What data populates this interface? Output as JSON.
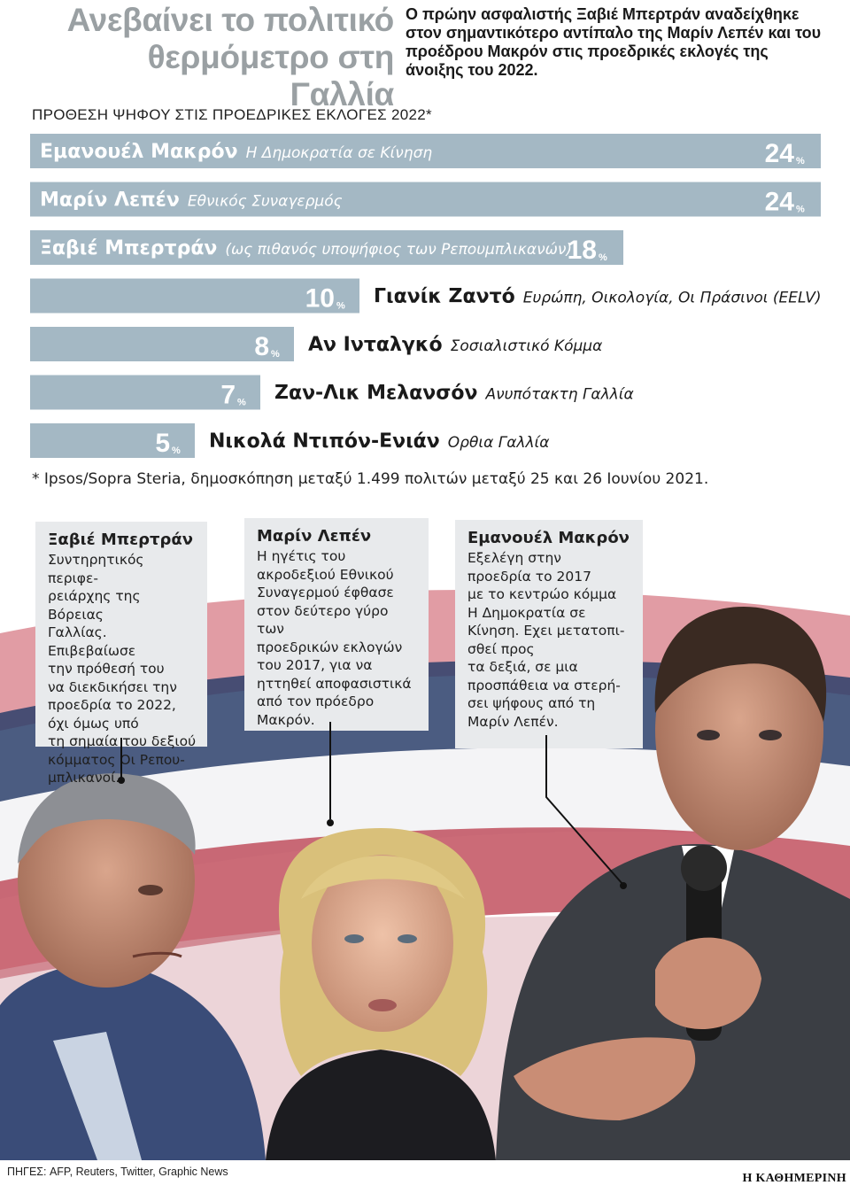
{
  "header": {
    "headline": "Ανεβαίνει το πολιτικό θερμόμετρο στη Γαλλία",
    "intro": "Ο πρώην ασφαλιστής Ξαβιέ Μπερτράν αναδείχθηκε στον σημαντικότερο αντίπαλο της Μαρίν Λεπέν και του προέδρου Μακρόν στις προεδρικές εκλογές της άνοιξης του 2022."
  },
  "chart_data": {
    "type": "bar",
    "orientation": "horizontal",
    "title": "ΠΡΟΘΕΣΗ ΨΗΦΟΥ ΣΤΙΣ ΠΡΟΕΔΡΙΚΕΣ ΕΚΛΟΓΕΣ 2022*",
    "unit": "%",
    "bar_color": "#a4b8c4",
    "xlim": [
      0,
      24
    ],
    "categories": [
      {
        "candidate": "Εμανουέλ Μακρόν",
        "party": "Η Δημοκρατία σε Κίνηση",
        "value": 24
      },
      {
        "candidate": "Μαρίν Λεπέν",
        "party": "Εθνικός Συναγερμός",
        "value": 24
      },
      {
        "candidate": "Ξαβιέ Μπερτράν",
        "party": "(ως πιθανός υποψήφιος των Ρεπουμπλικανών)",
        "value": 18
      },
      {
        "candidate": "Γιανίκ Ζαντό",
        "party": "Ευρώπη, Οικολογία, Οι Πράσινοι (EELV)",
        "value": 10
      },
      {
        "candidate": "Αν Ινταλγκό",
        "party": "Σοσιαλιστικό Κόμμα",
        "value": 8
      },
      {
        "candidate": "Ζαν-Λικ Μελανσόν",
        "party": "Ανυπότακτη Γαλλία",
        "value": 7
      },
      {
        "candidate": "Νικολά Ντιπόν-Ενιάν",
        "party": "Ορθια Γαλλία",
        "value": 5
      }
    ],
    "footnote": "* Ipsos/Sopra Steria, δημοσκόπηση μεταξύ 1.499 πολιτών μεταξύ 25 και 26 Ιουνίου 2021."
  },
  "cards": [
    {
      "name": "Ξαβιέ Μπερτράν",
      "text": "Συντηρητικός περιφε-\nρειάρχης της Βόρειας\nΓαλλίας. Επιβεβαίωσε\nτην πρόθεσή του\nνα διεκδικήσει την\nπροεδρία το 2022,\nόχι όμως υπό\nτη σημαία του δεξιού\nκόμματος Οι Ρεπου-\nμπλικανοί."
    },
    {
      "name": "Μαρίν Λεπέν",
      "text": "Η ηγέτις του\nακροδεξιού Εθνικού\nΣυναγερμού έφθασε\nστον δεύτερο γύρο των\nπροεδρικών εκλογών\nτου 2017, για να\nηττηθεί αποφασιστικά\nαπό τον πρόεδρο\nΜακρόν."
    },
    {
      "name": "Εμανουέλ Μακρόν",
      "text": "Εξελέγη στην\nπροεδρία το 2017\nμε το κεντρώο κόμμα\nΗ Δημοκρατία σε\nΚίνηση. Εχει μετατοπι-\nσθεί προς\nτα δεξιά, σε μια\nπροσπάθεια να στερή-\nσει ψήφους από τη\nΜαρίν Λεπέν."
    }
  ],
  "footer": {
    "sources": "ΠΗΓΕΣ: AFP, Reuters, Twitter, Graphic News",
    "brand": "Η ΚΑΘΗΜΕΡΙΝΗ"
  }
}
